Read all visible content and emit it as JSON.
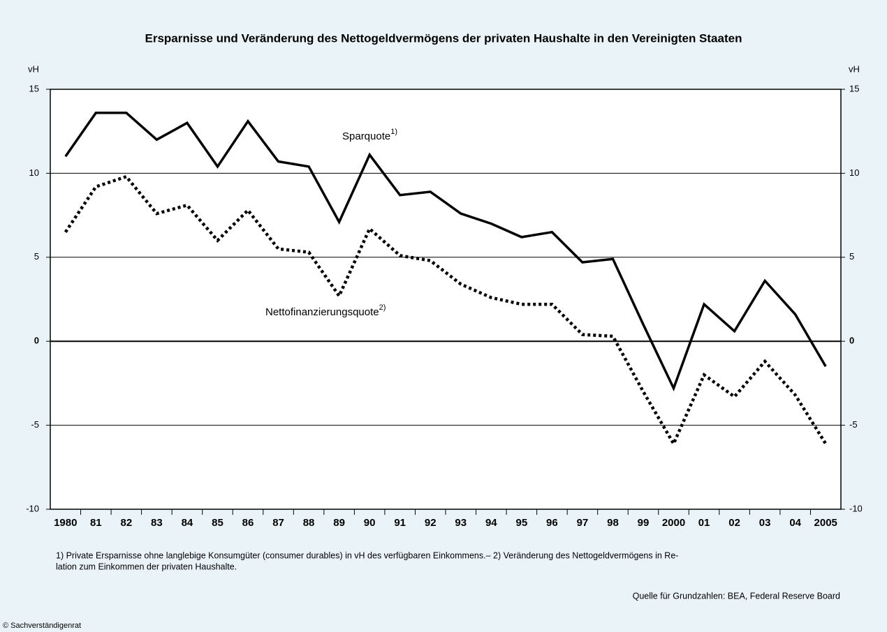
{
  "chart_data": {
    "type": "line",
    "title": "Ersparnisse und Veränderung des Nettogeldvermögens der privaten Haushalte in den Vereinigten Staaten",
    "y_label": "vH",
    "y2_label": "vH",
    "categories": [
      "1980",
      "81",
      "82",
      "83",
      "84",
      "85",
      "86",
      "87",
      "88",
      "89",
      "90",
      "91",
      "92",
      "93",
      "94",
      "95",
      "96",
      "97",
      "98",
      "99",
      "2000",
      "01",
      "02",
      "03",
      "04",
      "2005"
    ],
    "series": [
      {
        "name": "Sparquote",
        "note": "1)",
        "color": "#000000",
        "style": "solid",
        "values": [
          11.0,
          13.6,
          13.6,
          12.0,
          13.0,
          10.4,
          13.1,
          10.7,
          10.4,
          7.1,
          11.1,
          8.7,
          8.9,
          7.6,
          7.0,
          6.2,
          6.5,
          4.7,
          4.9,
          1.0,
          -2.8,
          2.2,
          0.6,
          3.6,
          1.6,
          -1.5
        ]
      },
      {
        "name": "Nettofinanzierungsquote",
        "note": "2)",
        "color": "#000000",
        "style": "dotted",
        "values": [
          6.5,
          9.2,
          9.8,
          7.6,
          8.1,
          6.0,
          7.8,
          5.5,
          5.3,
          2.7,
          6.7,
          5.1,
          4.8,
          3.4,
          2.6,
          2.2,
          2.2,
          0.4,
          0.3,
          -3.0,
          -6.1,
          -2.0,
          -3.3,
          -1.2,
          -3.2,
          -6.1
        ]
      }
    ],
    "ylim": [
      -10,
      15
    ],
    "yticks": [
      -10,
      -5,
      0,
      5,
      10,
      15
    ],
    "y2lim": [
      -10,
      15
    ],
    "y2ticks": [
      -10,
      -5,
      0,
      5,
      10,
      15
    ],
    "grid": true,
    "footnotes": [
      "1) Private Ersparnisse ohne langlebige Konsumgüter (consumer durables) in vH des verfügbaren Einkommens.– 2) Veränderung des Nettogeldvermögens in Re-",
      "lation zum Einkommen der privaten Haushalte."
    ],
    "source": "Quelle für Grundzahlen: BEA, Federal Reserve Board",
    "copyright": "© Sachverständigenrat"
  }
}
